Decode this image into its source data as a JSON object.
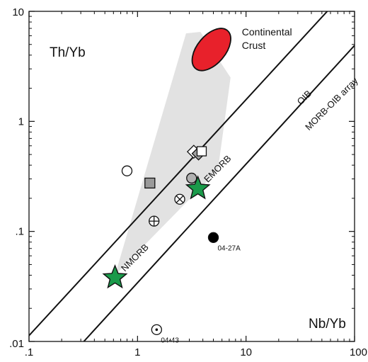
{
  "chart_data": {
    "type": "scatter",
    "xlabel": "Nb/Yb",
    "ylabel": "Th/Yb",
    "xscale": "log",
    "yscale": "log",
    "xlim": [
      0.1,
      100
    ],
    "ylim": [
      0.01,
      10
    ],
    "x_ticks": [
      {
        "value": 0.1,
        "label": ".1"
      },
      {
        "value": 1,
        "label": "1"
      },
      {
        "value": 10,
        "label": "10"
      },
      {
        "value": 100,
        "label": "100"
      }
    ],
    "y_ticks": [
      {
        "value": 0.01,
        "label": ".01"
      },
      {
        "value": 0.1,
        "label": ".1"
      },
      {
        "value": 1,
        "label": "1"
      },
      {
        "value": 10,
        "label": "10"
      }
    ],
    "array_lines": [
      {
        "name": "upper",
        "points": [
          [
            0.1,
            0.0113
          ],
          [
            56,
            10
          ]
        ]
      },
      {
        "name": "lower",
        "points": [
          [
            0.32,
            0.01
          ],
          [
            100,
            4.9
          ]
        ]
      }
    ],
    "regions": [
      {
        "name": "Continental Crust",
        "label": "Continental Crust",
        "center": [
          4.8,
          4.5
        ],
        "color": "#e8212b"
      }
    ],
    "shaded_field": {
      "color": "#e2e2e2",
      "polygon": [
        [
          0.62,
          0.04
        ],
        [
          5.5,
          0.36
        ],
        [
          7.2,
          2.5
        ],
        [
          3.8,
          6.5
        ],
        [
          2.8,
          6.3
        ]
      ]
    },
    "reference_points": [
      {
        "label": "NMORB",
        "x": 0.62,
        "y": 0.038,
        "marker": "star",
        "color": "#1a9a4a"
      },
      {
        "label": "EMORB",
        "x": 3.6,
        "y": 0.245,
        "marker": "star",
        "color": "#1a9a4a"
      }
    ],
    "samples": [
      {
        "marker": "circle-open",
        "x": 0.8,
        "y": 0.355
      },
      {
        "marker": "square-gray",
        "x": 1.3,
        "y": 0.275
      },
      {
        "marker": "diamond-open",
        "x": 3.3,
        "y": 0.53
      },
      {
        "marker": "diamond-gray",
        "x": 3.65,
        "y": 0.51
      },
      {
        "marker": "square-open",
        "x": 3.9,
        "y": 0.535
      },
      {
        "marker": "circle-gray",
        "x": 3.15,
        "y": 0.305
      },
      {
        "marker": "circle-cross",
        "x": 2.45,
        "y": 0.196
      },
      {
        "marker": "circle-plus",
        "x": 1.42,
        "y": 0.124
      },
      {
        "marker": "circle-black",
        "label": "04-27A",
        "x": 5.0,
        "y": 0.088
      },
      {
        "marker": "circle-dot",
        "label": "04-43",
        "x": 1.5,
        "y": 0.0128
      }
    ],
    "annotations": [
      {
        "text": "OIB",
        "x": 32,
        "y": 1.4,
        "angle": -45
      },
      {
        "text": "MORB-OIB array",
        "x": 38,
        "y": 0.82,
        "angle": -45
      }
    ],
    "grid": false,
    "legend": "none"
  }
}
